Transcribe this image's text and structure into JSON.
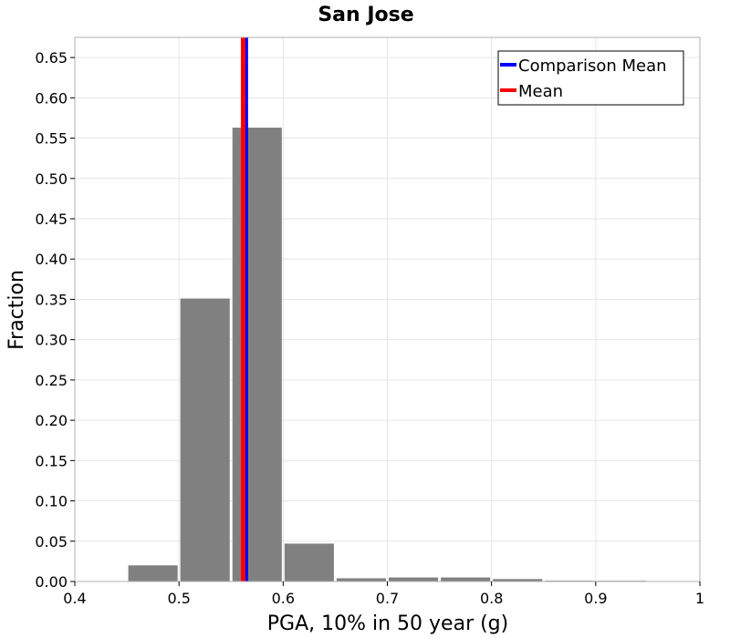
{
  "chart_data": {
    "type": "bar",
    "title": "San Jose",
    "xlabel": "PGA, 10% in 50 year (g)",
    "ylabel": "Fraction",
    "xlim": [
      0.4,
      1.0
    ],
    "ylim": [
      0.0,
      0.675
    ],
    "grid": true,
    "bar_color": "#808080",
    "bin_width": 0.05,
    "bins": [
      {
        "x": 0.475,
        "value": 0.02
      },
      {
        "x": 0.525,
        "value": 0.351
      },
      {
        "x": 0.575,
        "value": 0.563
      },
      {
        "x": 0.625,
        "value": 0.047
      },
      {
        "x": 0.675,
        "value": 0.004
      },
      {
        "x": 0.725,
        "value": 0.005
      },
      {
        "x": 0.775,
        "value": 0.005
      },
      {
        "x": 0.825,
        "value": 0.003
      },
      {
        "x": 0.875,
        "value": 0.001
      },
      {
        "x": 0.925,
        "value": 0.0005
      }
    ],
    "x_ticks": [
      {
        "value": 0.4,
        "label": "0.4"
      },
      {
        "value": 0.5,
        "label": "0.5"
      },
      {
        "value": 0.6,
        "label": "0.6"
      },
      {
        "value": 0.7,
        "label": "0.7"
      },
      {
        "value": 0.8,
        "label": "0.8"
      },
      {
        "value": 0.9,
        "label": "0.9"
      },
      {
        "value": 1.0,
        "label": "1"
      }
    ],
    "y_ticks": [
      {
        "value": 0.0,
        "label": "0.00"
      },
      {
        "value": 0.05,
        "label": "0.05"
      },
      {
        "value": 0.1,
        "label": "0.10"
      },
      {
        "value": 0.15,
        "label": "0.15"
      },
      {
        "value": 0.2,
        "label": "0.20"
      },
      {
        "value": 0.25,
        "label": "0.25"
      },
      {
        "value": 0.3,
        "label": "0.30"
      },
      {
        "value": 0.35,
        "label": "0.35"
      },
      {
        "value": 0.4,
        "label": "0.40"
      },
      {
        "value": 0.45,
        "label": "0.45"
      },
      {
        "value": 0.5,
        "label": "0.50"
      },
      {
        "value": 0.55,
        "label": "0.55"
      },
      {
        "value": 0.6,
        "label": "0.60"
      },
      {
        "value": 0.65,
        "label": "0.65"
      }
    ],
    "vlines": [
      {
        "name": "Comparison Mean",
        "x": 0.565,
        "color": "#0000ff"
      },
      {
        "name": "Mean",
        "x": 0.562,
        "color": "#ff0000"
      }
    ],
    "legend": {
      "placement": "top-right",
      "entries": [
        {
          "label": "Comparison Mean",
          "color": "#0000ff"
        },
        {
          "label": "Mean",
          "color": "#ff0000"
        }
      ]
    }
  }
}
